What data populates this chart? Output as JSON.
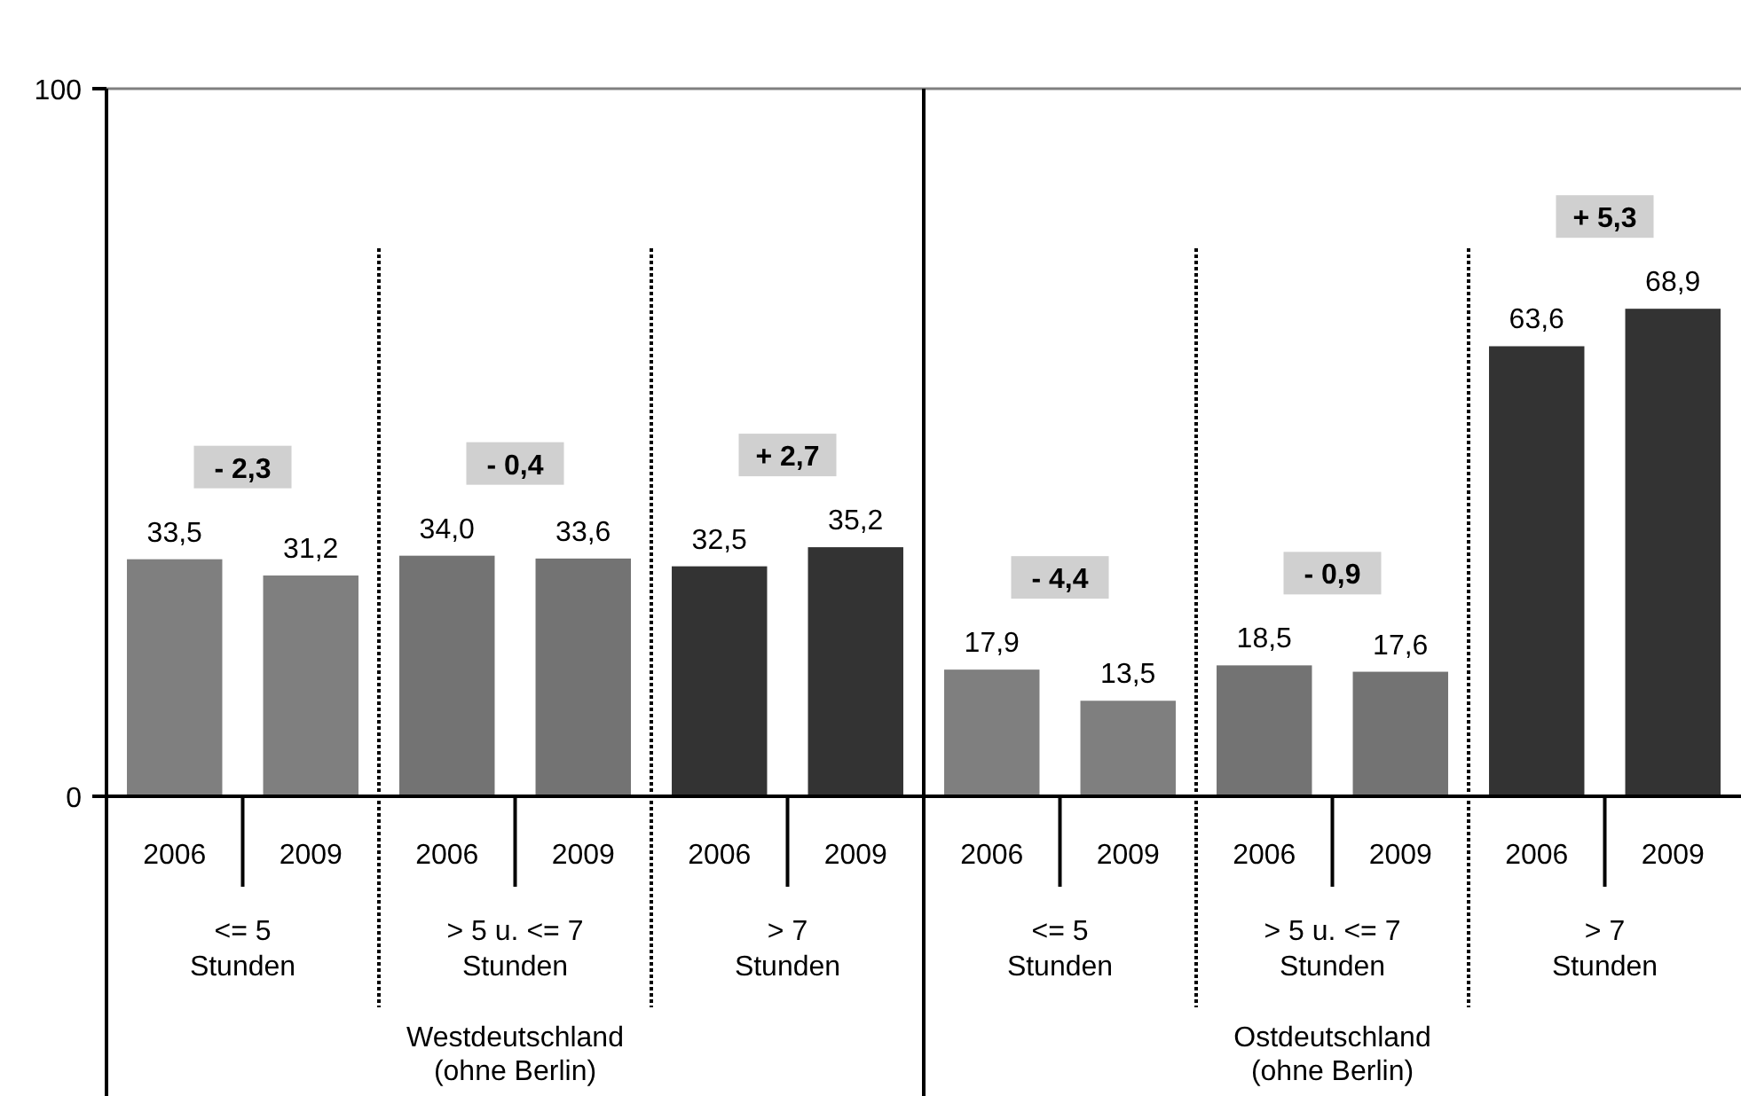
{
  "chart_data": [
    {
      "type": "bar",
      "categories": [
        "2006",
        "2009",
        "2006",
        "2009",
        "2006",
        "2009"
      ],
      "values": [
        33.5,
        31.2,
        34.0,
        33.6,
        32.5,
        35.2
      ],
      "value_labels": [
        "33,5",
        "31,2",
        "34,0",
        "33,6",
        "32,5",
        "35,2"
      ],
      "colors": [
        "#7f7f7f",
        "#7f7f7f",
        "#737373",
        "#737373",
        "#333333",
        "#333333"
      ],
      "ylim": [
        0,
        100
      ],
      "yticks": [
        0,
        100
      ],
      "annotations": [
        "- 2,3",
        "- 0,4",
        "+ 2,7",
        "<= 5\nStunden",
        "> 5 u. <= 7\nStunden",
        "> 7\nStunden",
        "Westdeutschland\n(ohne Berlin)"
      ]
    },
    {
      "type": "bar",
      "categories": [
        "2006",
        "2009",
        "2006",
        "2009",
        "2006",
        "2009"
      ],
      "values": [
        17.9,
        13.5,
        18.5,
        17.6,
        63.6,
        68.9
      ],
      "value_labels": [
        "17,9",
        "13,5",
        "18,5",
        "17,6",
        "63,6",
        "68,9"
      ],
      "colors": [
        "#7f7f7f",
        "#7f7f7f",
        "#737373",
        "#737373",
        "#333333",
        "#333333"
      ],
      "ylim": [
        0,
        100
      ],
      "tick_labels": "x",
      "annotations": [
        "- 4,4",
        "- 0,9",
        "+ 5,3",
        "<= 5\nStunden",
        "> 5 u. <= 7\nStunden",
        "> 7\nStunden",
        "Ostdeutschland\n(ohne Berlin)"
      ]
    }
  ]
}
